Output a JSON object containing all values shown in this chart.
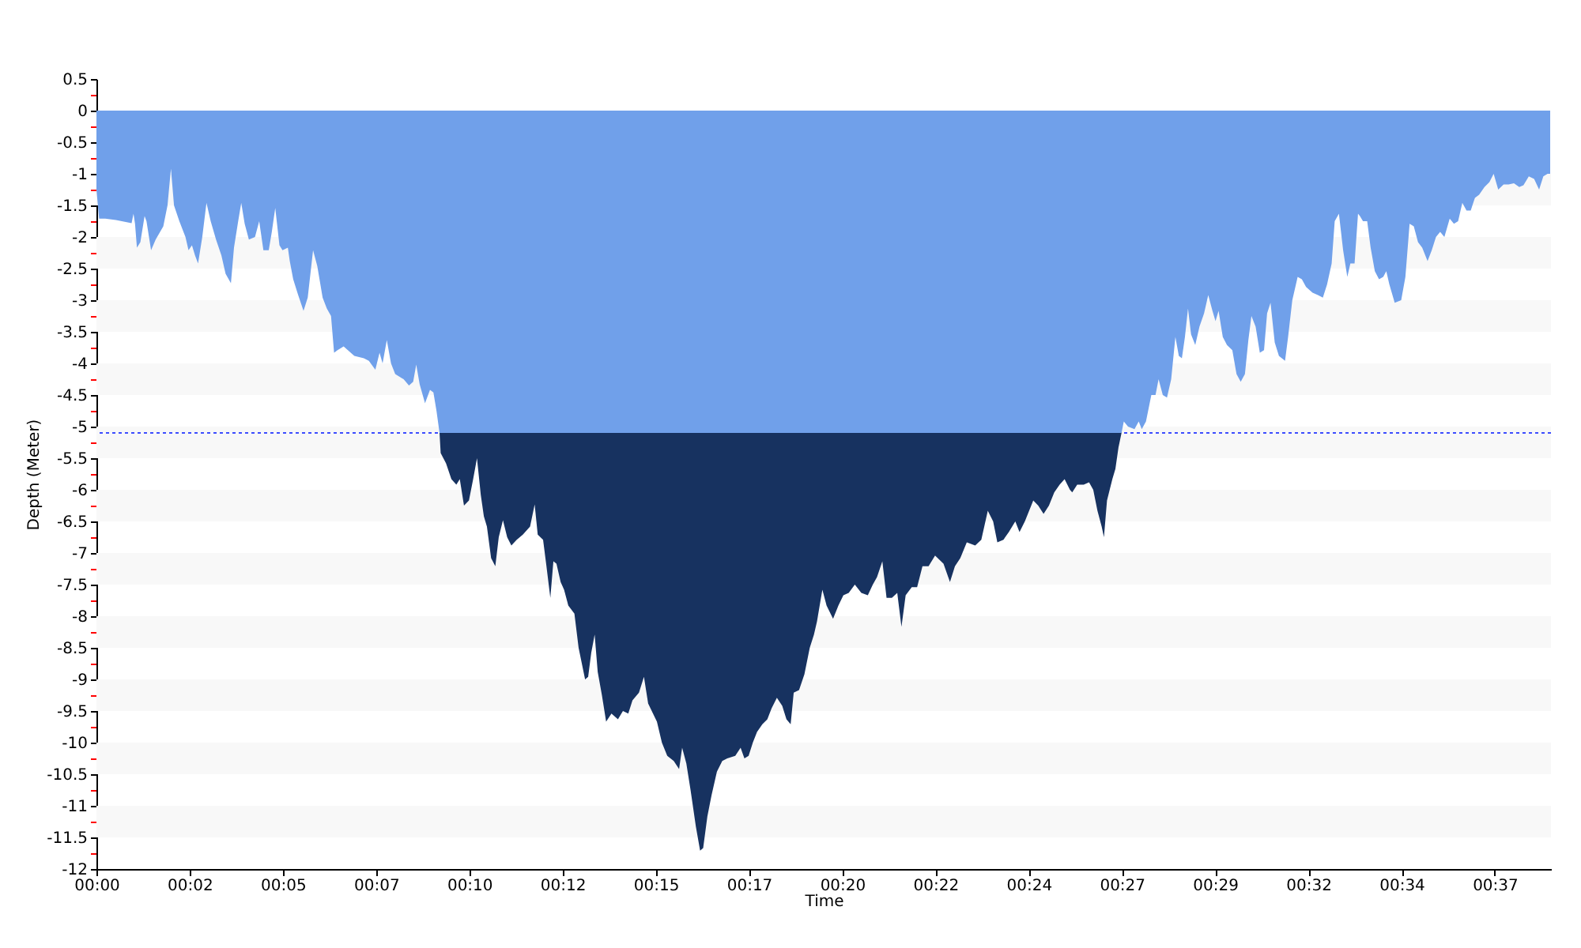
{
  "chart_data": {
    "type": "area",
    "xlabel": "Time",
    "ylabel": "Depth (Meter)",
    "xlim": [
      0,
      38.07
    ],
    "ylim": [
      -12,
      0.5
    ],
    "xticks": [
      {
        "value": 0,
        "label": "00:00"
      },
      {
        "value": 2.44,
        "label": "00:02"
      },
      {
        "value": 4.88,
        "label": "00:05"
      },
      {
        "value": 7.32,
        "label": "00:07"
      },
      {
        "value": 9.76,
        "label": "00:10"
      },
      {
        "value": 12.2,
        "label": "00:12"
      },
      {
        "value": 14.64,
        "label": "00:15"
      },
      {
        "value": 17.08,
        "label": "00:17"
      },
      {
        "value": 19.52,
        "label": "00:20"
      },
      {
        "value": 21.96,
        "label": "00:22"
      },
      {
        "value": 24.4,
        "label": "00:24"
      },
      {
        "value": 26.84,
        "label": "00:27"
      },
      {
        "value": 29.28,
        "label": "00:29"
      },
      {
        "value": 31.72,
        "label": "00:32"
      },
      {
        "value": 34.16,
        "label": "00:34"
      },
      {
        "value": 36.6,
        "label": "00:37"
      }
    ],
    "yticks": [
      0.5,
      {
        "value": 0.25,
        "label": null
      },
      0,
      {
        "value": -0.25,
        "label": null
      },
      -0.5,
      {
        "value": -0.75,
        "label": null
      },
      -1,
      {
        "value": -1.25,
        "label": null
      },
      -1.5,
      {
        "value": -1.75,
        "label": null
      },
      -2,
      {
        "value": -2.25,
        "label": null
      },
      -2.5,
      {
        "value": -2.75,
        "label": null
      },
      -3,
      {
        "value": -3.25,
        "label": null
      },
      -3.5,
      {
        "value": -3.75,
        "label": null
      },
      -4,
      {
        "value": -4.25,
        "label": null
      },
      -4.5,
      {
        "value": -4.75,
        "label": null
      },
      -5,
      {
        "value": -5.25,
        "label": null
      },
      -5.5,
      {
        "value": -5.75,
        "label": null
      },
      -6,
      {
        "value": -6.25,
        "label": null
      },
      -6.5,
      {
        "value": -6.75,
        "label": null
      },
      -7,
      {
        "value": -7.25,
        "label": null
      },
      -7.5,
      {
        "value": -7.75,
        "label": null
      },
      -8,
      {
        "value": -8.25,
        "label": null
      },
      -8.5,
      {
        "value": -8.75,
        "label": null
      },
      -9,
      {
        "value": -9.25,
        "label": null
      },
      -9.5,
      {
        "value": -9.75,
        "label": null
      },
      -10,
      {
        "value": -10.25,
        "label": null
      },
      -10.5,
      {
        "value": -10.75,
        "label": null
      },
      -11,
      {
        "value": -11.25,
        "label": null
      },
      -11.5,
      {
        "value": -11.75,
        "label": null
      },
      -12
    ],
    "bands": [
      {
        "axis": "y",
        "from": -1,
        "to": -1.5,
        "color": "#f8f8f8"
      },
      {
        "axis": "y",
        "from": -2,
        "to": -2.5,
        "color": "#f8f8f8"
      },
      {
        "axis": "y",
        "from": -3,
        "to": -3.5,
        "color": "#f8f8f8"
      },
      {
        "axis": "y",
        "from": -4,
        "to": -4.5,
        "color": "#f8f8f8"
      },
      {
        "axis": "y",
        "from": -5,
        "to": -5.5,
        "color": "#f8f8f8"
      },
      {
        "axis": "y",
        "from": -6,
        "to": -6.5,
        "color": "#f8f8f8"
      },
      {
        "axis": "y",
        "from": -7,
        "to": -7.5,
        "color": "#f8f8f8"
      },
      {
        "axis": "y",
        "from": -8,
        "to": -8.5,
        "color": "#f8f8f8"
      },
      {
        "axis": "y",
        "from": -9,
        "to": -9.5,
        "color": "#f8f8f8"
      },
      {
        "axis": "y",
        "from": -10,
        "to": -10.5,
        "color": "#f8f8f8"
      },
      {
        "axis": "y",
        "from": -11,
        "to": -11.5,
        "color": "#f8f8f8"
      }
    ],
    "ref_lines": [
      {
        "axis": "y",
        "value": -5.1,
        "color": "#3c4cff",
        "line_style": "dotted"
      }
    ],
    "series": [
      {
        "color": "#173260",
        "x": [
          8.98,
          9.01,
          9.15,
          9.29,
          9.42,
          9.51,
          9.62,
          9.75,
          9.86,
          9.96,
          10.06,
          10.14,
          10.22,
          10.33,
          10.44,
          10.53,
          10.64,
          10.75,
          10.86,
          11.0,
          11.16,
          11.35,
          11.47,
          11.55,
          11.69,
          11.77,
          11.88,
          11.96,
          12.04,
          12.15,
          12.24,
          12.35,
          12.51,
          12.62,
          12.79,
          12.87,
          12.95,
          13.04,
          13.12,
          13.23,
          13.34,
          13.48,
          13.65,
          13.78,
          13.92,
          14.03,
          14.2,
          14.33,
          14.44,
          14.67,
          14.8,
          14.94,
          15.11,
          15.25,
          15.33,
          15.44,
          15.55,
          15.69,
          15.8,
          15.88,
          15.99,
          16.1,
          16.24,
          16.38,
          16.51,
          16.72,
          16.86,
          16.96,
          17.07,
          17.18,
          17.29,
          17.43,
          17.56,
          17.67,
          17.81,
          17.95,
          18.06,
          18.17,
          18.25,
          18.39,
          18.53,
          18.67,
          18.78,
          18.86,
          19.0,
          19.11,
          19.28,
          19.42,
          19.55,
          19.69,
          19.85,
          20.02,
          20.19,
          20.32,
          20.43,
          20.57,
          20.68,
          20.82,
          20.96,
          21.07,
          21.18,
          21.34,
          21.48,
          21.62,
          21.78,
          21.95,
          22.17,
          22.34,
          22.47,
          22.61,
          22.78,
          23.0,
          23.16,
          23.33,
          23.47,
          23.58,
          23.74,
          23.88,
          24.05,
          24.16,
          24.3,
          24.52,
          24.65,
          24.79,
          24.93,
          25.07,
          25.21,
          25.34,
          25.48,
          25.54,
          25.67,
          25.84,
          25.98,
          26.09,
          26.2,
          26.31,
          26.37,
          26.45,
          26.59,
          26.67,
          26.75,
          26.83
        ],
        "values": [
          -5.1,
          -5.42,
          -5.58,
          -5.83,
          -5.92,
          -5.83,
          -6.25,
          -6.17,
          -5.83,
          -5.5,
          -6.08,
          -6.42,
          -6.58,
          -7.08,
          -7.21,
          -6.75,
          -6.48,
          -6.75,
          -6.88,
          -6.79,
          -6.71,
          -6.58,
          -6.23,
          -6.71,
          -6.79,
          -7.17,
          -7.71,
          -7.13,
          -7.17,
          -7.46,
          -7.58,
          -7.83,
          -7.96,
          -8.5,
          -9.0,
          -8.96,
          -8.58,
          -8.29,
          -8.88,
          -9.25,
          -9.67,
          -9.54,
          -9.63,
          -9.5,
          -9.54,
          -9.33,
          -9.21,
          -8.96,
          -9.38,
          -9.67,
          -10.0,
          -10.21,
          -10.29,
          -10.42,
          -10.08,
          -10.33,
          -10.75,
          -11.33,
          -11.71,
          -11.67,
          -11.17,
          -10.83,
          -10.46,
          -10.29,
          -10.25,
          -10.21,
          -10.08,
          -10.25,
          -10.21,
          -10.0,
          -9.83,
          -9.71,
          -9.63,
          -9.46,
          -9.29,
          -9.42,
          -9.63,
          -9.71,
          -9.21,
          -9.17,
          -8.92,
          -8.5,
          -8.29,
          -8.08,
          -7.58,
          -7.83,
          -8.04,
          -7.83,
          -7.67,
          -7.63,
          -7.5,
          -7.63,
          -7.67,
          -7.5,
          -7.38,
          -7.13,
          -7.71,
          -7.71,
          -7.63,
          -8.17,
          -7.67,
          -7.54,
          -7.54,
          -7.21,
          -7.21,
          -7.04,
          -7.17,
          -7.46,
          -7.21,
          -7.08,
          -6.83,
          -6.88,
          -6.79,
          -6.33,
          -6.5,
          -6.83,
          -6.79,
          -6.67,
          -6.5,
          -6.67,
          -6.5,
          -6.17,
          -6.25,
          -6.38,
          -6.25,
          -6.04,
          -5.92,
          -5.83,
          -6.0,
          -6.04,
          -5.92,
          -5.92,
          -5.88,
          -6.0,
          -6.33,
          -6.58,
          -6.75,
          -6.17,
          -5.83,
          -5.67,
          -5.33,
          -5.1
        ]
      },
      {
        "color": "#70a0ea",
        "x": [
          0.0,
          0.07,
          0.23,
          0.51,
          0.92,
          0.97,
          1.01,
          1.06,
          1.15,
          1.26,
          1.31,
          1.43,
          1.55,
          1.75,
          1.86,
          1.95,
          2.03,
          2.17,
          2.33,
          2.41,
          2.5,
          2.58,
          2.66,
          2.77,
          2.88,
          2.99,
          3.13,
          3.27,
          3.38,
          3.52,
          3.6,
          3.71,
          3.79,
          3.88,
          3.99,
          4.15,
          4.26,
          4.37,
          4.51,
          4.59,
          4.68,
          4.79,
          4.87,
          5.01,
          5.06,
          5.15,
          5.28,
          5.42,
          5.53,
          5.67,
          5.78,
          5.92,
          6.03,
          6.14,
          6.22,
          6.31,
          6.47,
          6.58,
          6.75,
          7.0,
          7.13,
          7.3,
          7.41,
          7.49,
          7.6,
          7.71,
          7.82,
          8.04,
          8.18,
          8.29,
          8.37,
          8.46,
          8.6,
          8.73,
          8.82,
          8.9,
          8.98,
          26.83,
          26.89,
          27.0,
          27.17,
          27.28,
          27.36,
          27.47,
          27.61,
          27.72,
          27.8,
          27.91,
          28.02,
          28.13,
          28.24,
          28.33,
          28.41,
          28.49,
          28.57,
          28.65,
          28.76,
          28.87,
          28.99,
          29.1,
          29.21,
          29.29,
          29.37,
          29.48,
          29.59,
          29.73,
          29.84,
          29.95,
          30.06,
          30.15,
          30.23,
          30.34,
          30.45,
          30.56,
          30.64,
          30.73,
          30.84,
          30.95,
          31.11,
          31.19,
          31.3,
          31.44,
          31.55,
          31.66,
          31.83,
          31.97,
          32.1,
          32.21,
          32.33,
          32.41,
          32.52,
          32.63,
          32.74,
          32.82,
          32.93,
          33.02,
          33.07,
          33.15,
          33.26,
          33.35,
          33.46,
          33.57,
          33.68,
          33.76,
          33.84,
          33.98,
          34.15,
          34.26,
          34.37,
          34.48,
          34.59,
          34.7,
          34.84,
          34.95,
          35.06,
          35.17,
          35.28,
          35.42,
          35.53,
          35.64,
          35.75,
          35.86,
          35.97,
          36.08,
          36.19,
          36.33,
          36.46,
          36.57,
          36.69,
          36.83,
          36.96,
          37.1,
          37.24,
          37.35,
          37.49,
          37.63,
          37.76,
          37.87,
          37.98,
          38.05
        ],
        "values": [
          -1.25,
          -1.71,
          -1.71,
          -1.73,
          -1.78,
          -1.63,
          -1.79,
          -2.17,
          -2.08,
          -1.67,
          -1.75,
          -2.21,
          -2.04,
          -1.83,
          -1.5,
          -0.92,
          -1.5,
          -1.75,
          -2.0,
          -2.21,
          -2.13,
          -2.29,
          -2.42,
          -2.0,
          -1.46,
          -1.75,
          -2.04,
          -2.29,
          -2.58,
          -2.73,
          -2.17,
          -1.75,
          -1.46,
          -1.79,
          -2.04,
          -2.0,
          -1.75,
          -2.21,
          -2.21,
          -1.92,
          -1.54,
          -2.13,
          -2.21,
          -2.17,
          -2.38,
          -2.67,
          -2.92,
          -3.17,
          -2.96,
          -2.21,
          -2.46,
          -2.96,
          -3.13,
          -3.25,
          -3.83,
          -3.79,
          -3.73,
          -3.79,
          -3.88,
          -3.92,
          -3.96,
          -4.1,
          -3.83,
          -4.0,
          -3.63,
          -4.0,
          -4.17,
          -4.25,
          -4.35,
          -4.29,
          -4.02,
          -4.33,
          -4.63,
          -4.42,
          -4.46,
          -4.75,
          -5.1,
          -5.1,
          -4.92,
          -5.0,
          -5.04,
          -4.92,
          -5.04,
          -4.92,
          -4.5,
          -4.5,
          -4.25,
          -4.5,
          -4.54,
          -4.25,
          -3.58,
          -3.88,
          -3.92,
          -3.58,
          -3.13,
          -3.54,
          -3.71,
          -3.42,
          -3.21,
          -2.92,
          -3.17,
          -3.33,
          -3.17,
          -3.58,
          -3.71,
          -3.79,
          -4.17,
          -4.29,
          -4.17,
          -3.63,
          -3.25,
          -3.42,
          -3.83,
          -3.79,
          -3.21,
          -3.04,
          -3.67,
          -3.88,
          -3.96,
          -3.58,
          -3.0,
          -2.63,
          -2.67,
          -2.79,
          -2.88,
          -2.92,
          -2.96,
          -2.75,
          -2.42,
          -1.75,
          -1.63,
          -2.21,
          -2.63,
          -2.42,
          -2.42,
          -1.63,
          -1.67,
          -1.75,
          -1.75,
          -2.17,
          -2.54,
          -2.67,
          -2.63,
          -2.54,
          -2.75,
          -3.04,
          -3.0,
          -2.63,
          -1.79,
          -1.83,
          -2.08,
          -2.17,
          -2.38,
          -2.21,
          -2.0,
          -1.92,
          -2.0,
          -1.71,
          -1.79,
          -1.75,
          -1.46,
          -1.58,
          -1.58,
          -1.38,
          -1.33,
          -1.21,
          -1.13,
          -1.0,
          -1.25,
          -1.17,
          -1.17,
          -1.15,
          -1.21,
          -1.18,
          -1.04,
          -1.08,
          -1.25,
          -1.04,
          -1.0,
          -1.0
        ]
      }
    ]
  }
}
